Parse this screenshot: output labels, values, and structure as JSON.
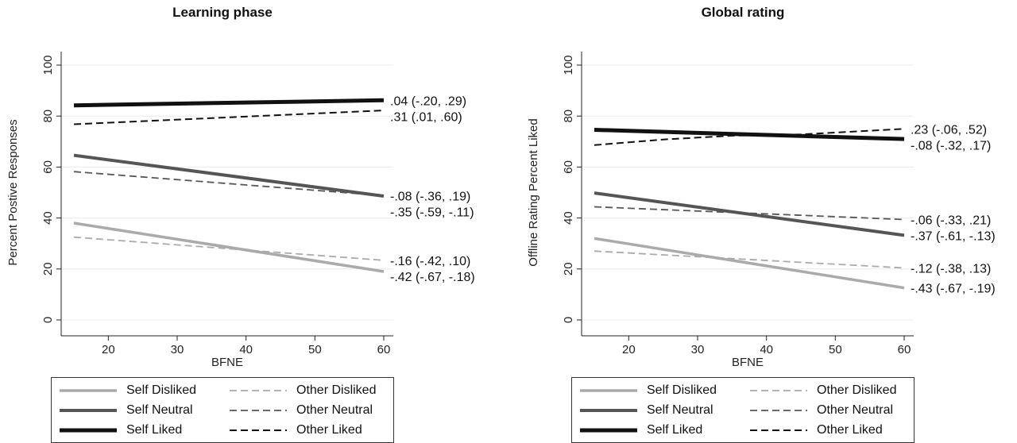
{
  "chart_data": [
    {
      "type": "line",
      "title": "Learning phase",
      "xlabel": "BFNE",
      "ylabel": "Percent Postive Responses",
      "xlim": [
        15,
        60
      ],
      "ylim": [
        0,
        100
      ],
      "xticks": [
        "20",
        "30",
        "40",
        "50",
        "60"
      ],
      "yticks": [
        "0",
        "20",
        "40",
        "60",
        "80",
        "100"
      ],
      "grid": true,
      "series": [
        {
          "name": "Self Liked",
          "style": "solid",
          "weight": "heavy",
          "color": "#111111",
          "x": [
            15,
            60
          ],
          "y": [
            84.2,
            86.2
          ],
          "label": ".04 (-.20, .29)"
        },
        {
          "name": "Other Liked",
          "style": "dashed",
          "weight": "heavy",
          "color": "#111111",
          "x": [
            15,
            60
          ],
          "y": [
            76.8,
            82.2
          ],
          "label": ".31 (.01, .60)"
        },
        {
          "name": "Self Neutral",
          "style": "solid",
          "weight": "medium",
          "color": "#555555",
          "x": [
            15,
            60
          ],
          "y": [
            64.6,
            48.6
          ],
          "label": "-.35 (-.59, -.11)"
        },
        {
          "name": "Other Neutral",
          "style": "dashed",
          "weight": "medium",
          "color": "#555555",
          "x": [
            15,
            60
          ],
          "y": [
            58.2,
            48.8
          ],
          "label": "-.08 (-.36, .19)"
        },
        {
          "name": "Other Disliked",
          "style": "dashed",
          "weight": "light",
          "color": "#aaaaaa",
          "x": [
            15,
            60
          ],
          "y": [
            32.5,
            23.4
          ],
          "label": "-.16 (-.42, .10)"
        },
        {
          "name": "Self Disliked",
          "style": "solid",
          "weight": "light",
          "color": "#aaaaaa",
          "x": [
            15,
            60
          ],
          "y": [
            38.0,
            19.0
          ],
          "label": "-.42 (-.67, -.18)"
        }
      ]
    },
    {
      "type": "line",
      "title": "Global rating",
      "xlabel": "BFNE",
      "ylabel": "Offline Rating Percent Liked",
      "xlim": [
        15,
        60
      ],
      "ylim": [
        0,
        100
      ],
      "xticks": [
        "20",
        "30",
        "40",
        "50",
        "60"
      ],
      "yticks": [
        "0",
        "20",
        "40",
        "60",
        "80",
        "100"
      ],
      "grid": true,
      "series": [
        {
          "name": "Other Liked",
          "style": "dashed",
          "weight": "heavy",
          "color": "#111111",
          "x": [
            15,
            25,
            35,
            45,
            60
          ],
          "y": [
            68.6,
            70.8,
            72.3,
            72.8,
            75.0
          ],
          "label": ".23 (-.06, .52)"
        },
        {
          "name": "Self Liked",
          "style": "solid",
          "weight": "heavy",
          "color": "#111111",
          "x": [
            15,
            60
          ],
          "y": [
            74.6,
            71.0
          ],
          "label": "-.08 (-.32, .17)"
        },
        {
          "name": "Other Neutral",
          "style": "dashed",
          "weight": "medium",
          "color": "#555555",
          "x": [
            15,
            60
          ],
          "y": [
            44.4,
            39.4
          ],
          "label": "-.06 (-.33, .21)"
        },
        {
          "name": "Self Neutral",
          "style": "solid",
          "weight": "medium",
          "color": "#555555",
          "x": [
            15,
            60
          ],
          "y": [
            49.8,
            33.2
          ],
          "label": "-.37 (-.61, -.13)"
        },
        {
          "name": "Other Disliked",
          "style": "dashed",
          "weight": "light",
          "color": "#aaaaaa",
          "x": [
            15,
            60
          ],
          "y": [
            27.0,
            20.4
          ],
          "label": "-.12 (-.38, .13)"
        },
        {
          "name": "Self Disliked",
          "style": "solid",
          "weight": "light",
          "color": "#aaaaaa",
          "x": [
            15,
            60
          ],
          "y": [
            32.0,
            12.6
          ],
          "label": "-.43 (-.67, -.19)"
        }
      ]
    }
  ],
  "legend": [
    {
      "name": "Self Disliked",
      "style": "solid",
      "weight": "light",
      "color": "#aaaaaa"
    },
    {
      "name": "Other Disliked",
      "style": "dashed",
      "weight": "light",
      "color": "#aaaaaa"
    },
    {
      "name": "Self Neutral",
      "style": "solid",
      "weight": "medium",
      "color": "#555555"
    },
    {
      "name": "Other Neutral",
      "style": "dashed",
      "weight": "medium",
      "color": "#555555"
    },
    {
      "name": "Self Liked",
      "style": "solid",
      "weight": "heavy",
      "color": "#111111"
    },
    {
      "name": "Other Liked",
      "style": "dashed",
      "weight": "heavy",
      "color": "#111111"
    }
  ]
}
